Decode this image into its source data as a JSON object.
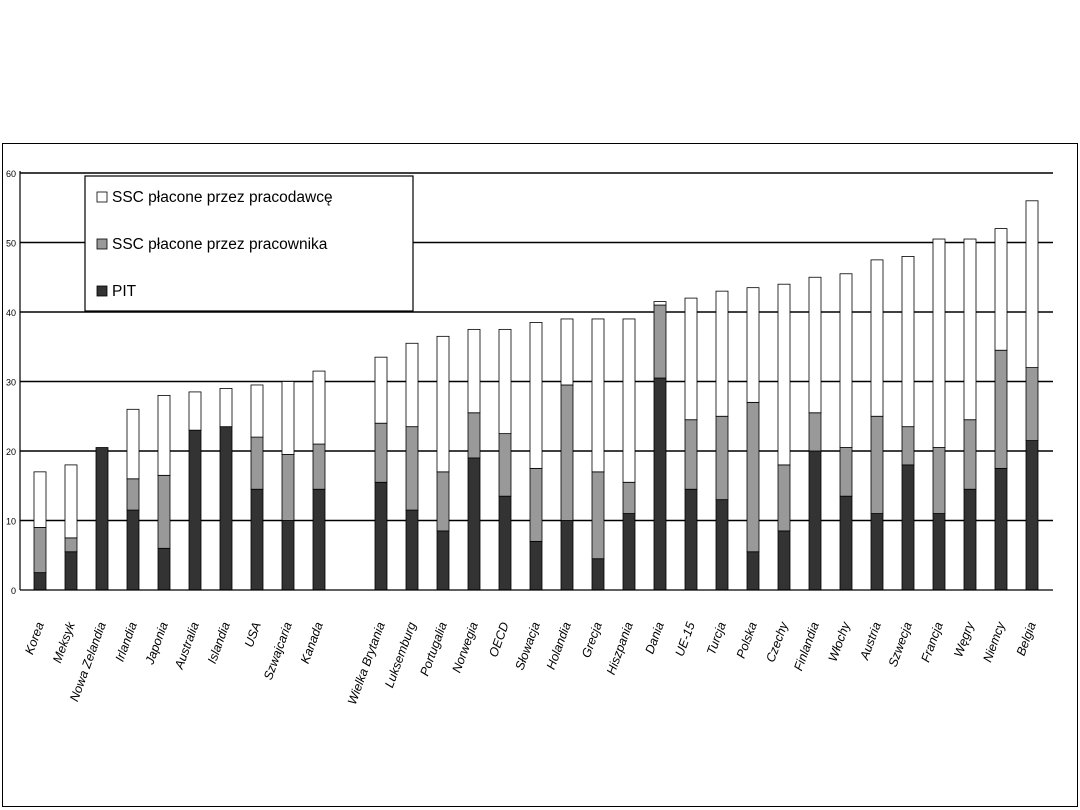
{
  "chart_data": {
    "type": "bar",
    "stacked": true,
    "title": "",
    "xlabel": "",
    "ylabel": "",
    "ylim": [
      0,
      60
    ],
    "yticks": [
      0,
      10,
      20,
      30,
      40,
      50,
      60
    ],
    "grid": true,
    "legend_position": "top-left",
    "legend": [
      "SSC płacone przez pracodawcę",
      "SSC płacone przez pracownika",
      "PIT"
    ],
    "colors": {
      "employer": "#ffffff",
      "employee": "#999999",
      "pit": "#333333",
      "outline": "#000000"
    },
    "categories": [
      "Korea",
      "Meksyk",
      "Nowa Zelandia",
      "Irlandia",
      "Japonia",
      "Australia",
      "Islandia",
      "USA",
      "Szwajcaria",
      "Kanada",
      "Wielka Brytania",
      "Luksemburg",
      "Portugalia",
      "Norwegia",
      "OECD",
      "Słowacja",
      "Holandia",
      "Grecja",
      "Hiszpania",
      "Dania",
      "UE-15",
      "Turcja",
      "Polska",
      "Czechy",
      "Finlandia",
      "Włochy",
      "Austria",
      "Szwecja",
      "Francja",
      "Węgry",
      "Niemcy",
      "Belgia"
    ],
    "series": [
      {
        "name": "PIT",
        "values": [
          2.5,
          5.5,
          20.5,
          11.5,
          6,
          23,
          23.5,
          14.5,
          10,
          14.5,
          15.5,
          11.5,
          8.5,
          19,
          13.5,
          7,
          10,
          4.5,
          11,
          30.5,
          14.5,
          13,
          5.5,
          8.5,
          20,
          13.5,
          11,
          18,
          11,
          14.5,
          17.5,
          21.5
        ]
      },
      {
        "name": "SSC płacone przez pracownika",
        "values": [
          6.5,
          2,
          0,
          4.5,
          10.5,
          0,
          0,
          7.5,
          9.5,
          6.5,
          8.5,
          12,
          8.5,
          6.5,
          9,
          10.5,
          19.5,
          12.5,
          4.5,
          10.5,
          10,
          12,
          21.5,
          9.5,
          5.5,
          7,
          14,
          5.5,
          9.5,
          10,
          17,
          10.5
        ]
      },
      {
        "name": "SSC płacone przez pracodawcę",
        "values": [
          8,
          10.5,
          0,
          10,
          11.5,
          5.5,
          5.5,
          7.5,
          10.5,
          10.5,
          9.5,
          12,
          19.5,
          12,
          15,
          21,
          9.5,
          22,
          23.5,
          0.5,
          17.5,
          18,
          16.5,
          26,
          19.5,
          25,
          22.5,
          24.5,
          30,
          26,
          17.5,
          24
        ]
      }
    ]
  }
}
